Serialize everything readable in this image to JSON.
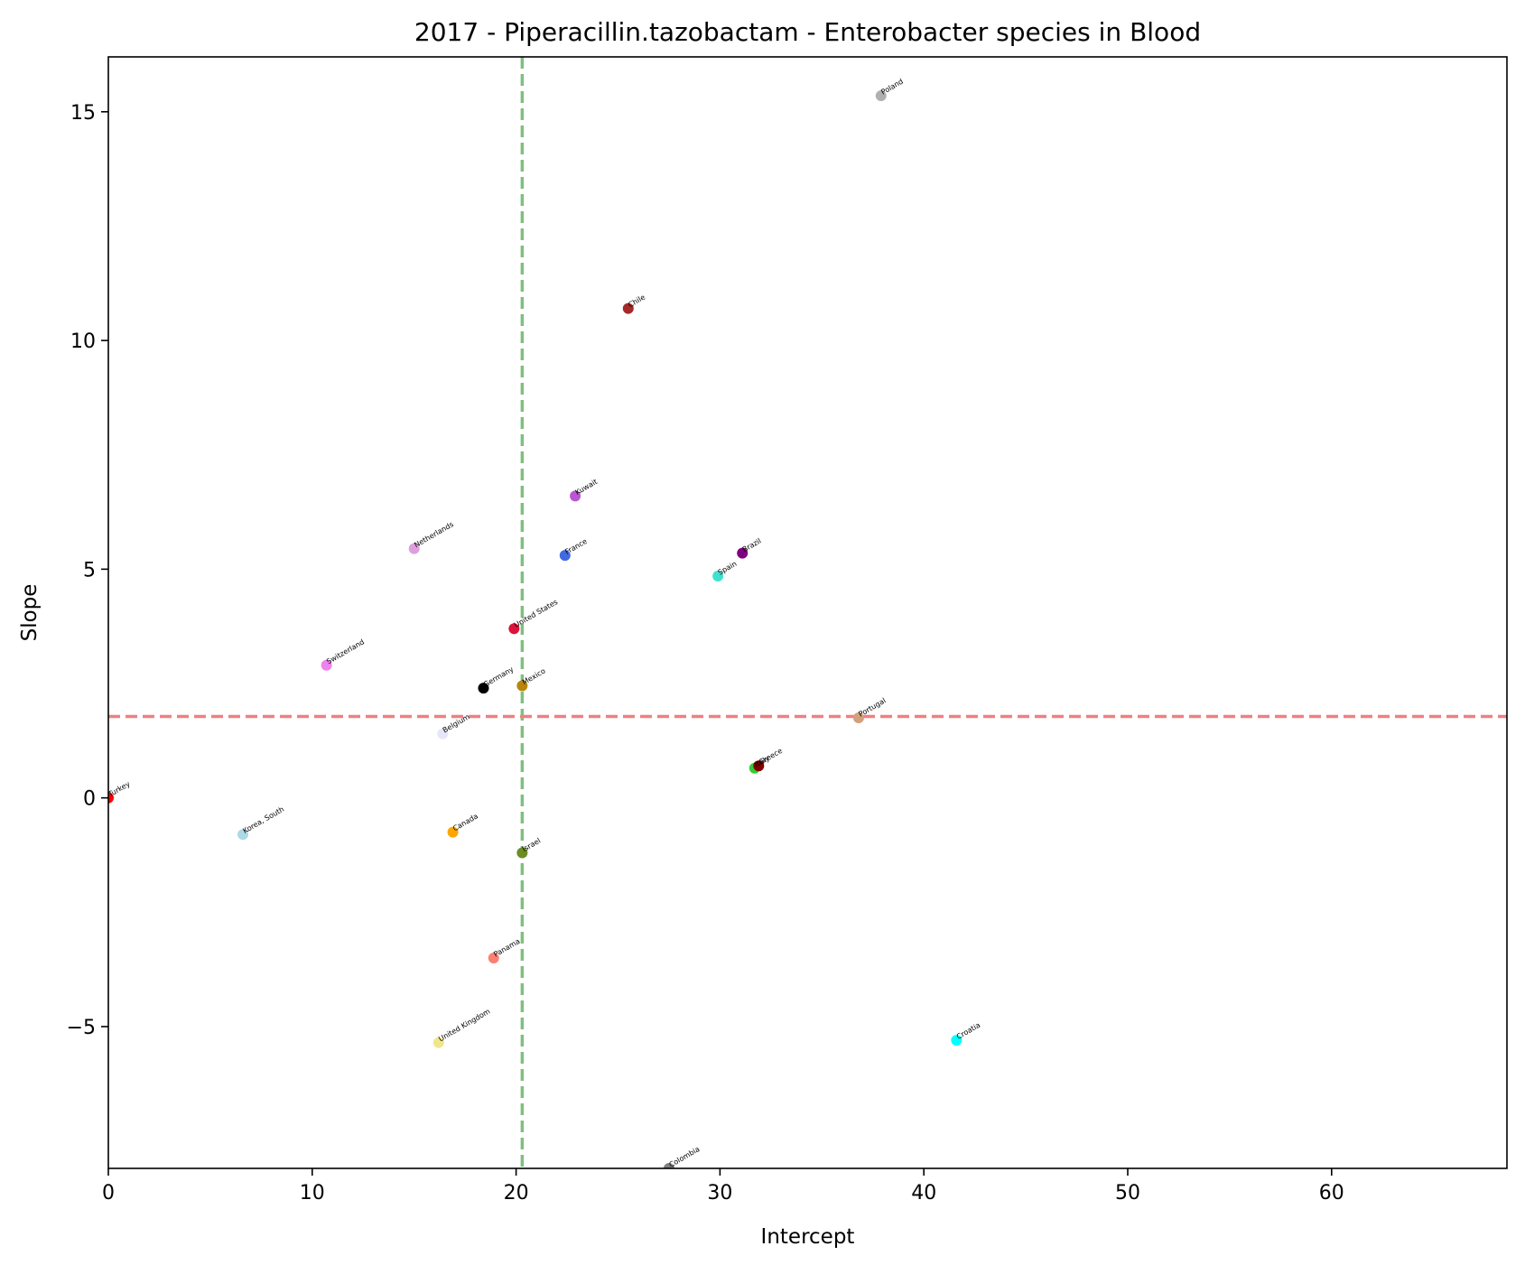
{
  "chart_data": {
    "type": "scatter",
    "title": "2017 - Piperacillin.tazobactam - Enterobacter species in Blood",
    "xlabel": "Intercept",
    "ylabel": "Slope",
    "xlim": [
      0,
      68.6
    ],
    "ylim": [
      -8.1,
      16.2
    ],
    "xticks": [
      0,
      10,
      20,
      30,
      40,
      50,
      60
    ],
    "yticks": [
      -5,
      0,
      5,
      10,
      15
    ],
    "xtick_labels": [
      "0",
      "10",
      "20",
      "30",
      "40",
      "50",
      "60"
    ],
    "ytick_labels": [
      "−5",
      "0",
      "5",
      "10",
      "15"
    ],
    "grid": false,
    "reference_lines": {
      "vertical": {
        "x": 20.3,
        "color": "#7fbf7f",
        "style": "dashed"
      },
      "horizontal": {
        "y": 1.78,
        "color": "#f08080",
        "style": "dashed"
      }
    },
    "points": [
      {
        "label": "Poland",
        "x": 37.9,
        "y": 15.35,
        "color": "#b0b0b0"
      },
      {
        "label": "Chile",
        "x": 25.5,
        "y": 10.7,
        "color": "#a52a2a"
      },
      {
        "label": "Kuwait",
        "x": 22.9,
        "y": 6.6,
        "color": "#ba55d3"
      },
      {
        "label": "Netherlands",
        "x": 15.0,
        "y": 5.45,
        "color": "#dda0dd"
      },
      {
        "label": "France",
        "x": 22.4,
        "y": 5.3,
        "color": "#4169e1"
      },
      {
        "label": "Brazil",
        "x": 31.1,
        "y": 5.35,
        "color": "#800080"
      },
      {
        "label": "Spain",
        "x": 29.9,
        "y": 4.85,
        "color": "#40e0d0"
      },
      {
        "label": "United States",
        "x": 19.9,
        "y": 3.7,
        "color": "#dc143c"
      },
      {
        "label": "Switzerland",
        "x": 10.7,
        "y": 2.9,
        "color": "#ee82ee"
      },
      {
        "label": "Germany",
        "x": 18.4,
        "y": 2.4,
        "color": "#000000"
      },
      {
        "label": "Mexico",
        "x": 20.3,
        "y": 2.45,
        "color": "#b8860b"
      },
      {
        "label": "Portugal",
        "x": 36.8,
        "y": 1.75,
        "color": "#d2a07a"
      },
      {
        "label": "Belgium",
        "x": 16.4,
        "y": 1.4,
        "color": "#e6e6fa"
      },
      {
        "label": "Italy",
        "x": 31.7,
        "y": 0.65,
        "color": "#32cd32"
      },
      {
        "label": "Greece",
        "x": 31.9,
        "y": 0.7,
        "color": "#800000"
      },
      {
        "label": "Turkey",
        "x": 0.0,
        "y": 0.0,
        "color": "#ff0000"
      },
      {
        "label": "Korea, South",
        "x": 6.6,
        "y": -0.8,
        "color": "#add8e6"
      },
      {
        "label": "Canada",
        "x": 16.9,
        "y": -0.75,
        "color": "#ffa500"
      },
      {
        "label": "Israel",
        "x": 20.3,
        "y": -1.2,
        "color": "#6b8e23"
      },
      {
        "label": "Panama",
        "x": 18.9,
        "y": -3.5,
        "color": "#fa8072"
      },
      {
        "label": "United Kingdom",
        "x": 16.2,
        "y": -5.35,
        "color": "#f0e68c"
      },
      {
        "label": "Croatia",
        "x": 41.6,
        "y": -5.3,
        "color": "#00ffff"
      },
      {
        "label": "Colombia",
        "x": 27.5,
        "y": -8.1,
        "color": "#808080"
      }
    ]
  }
}
